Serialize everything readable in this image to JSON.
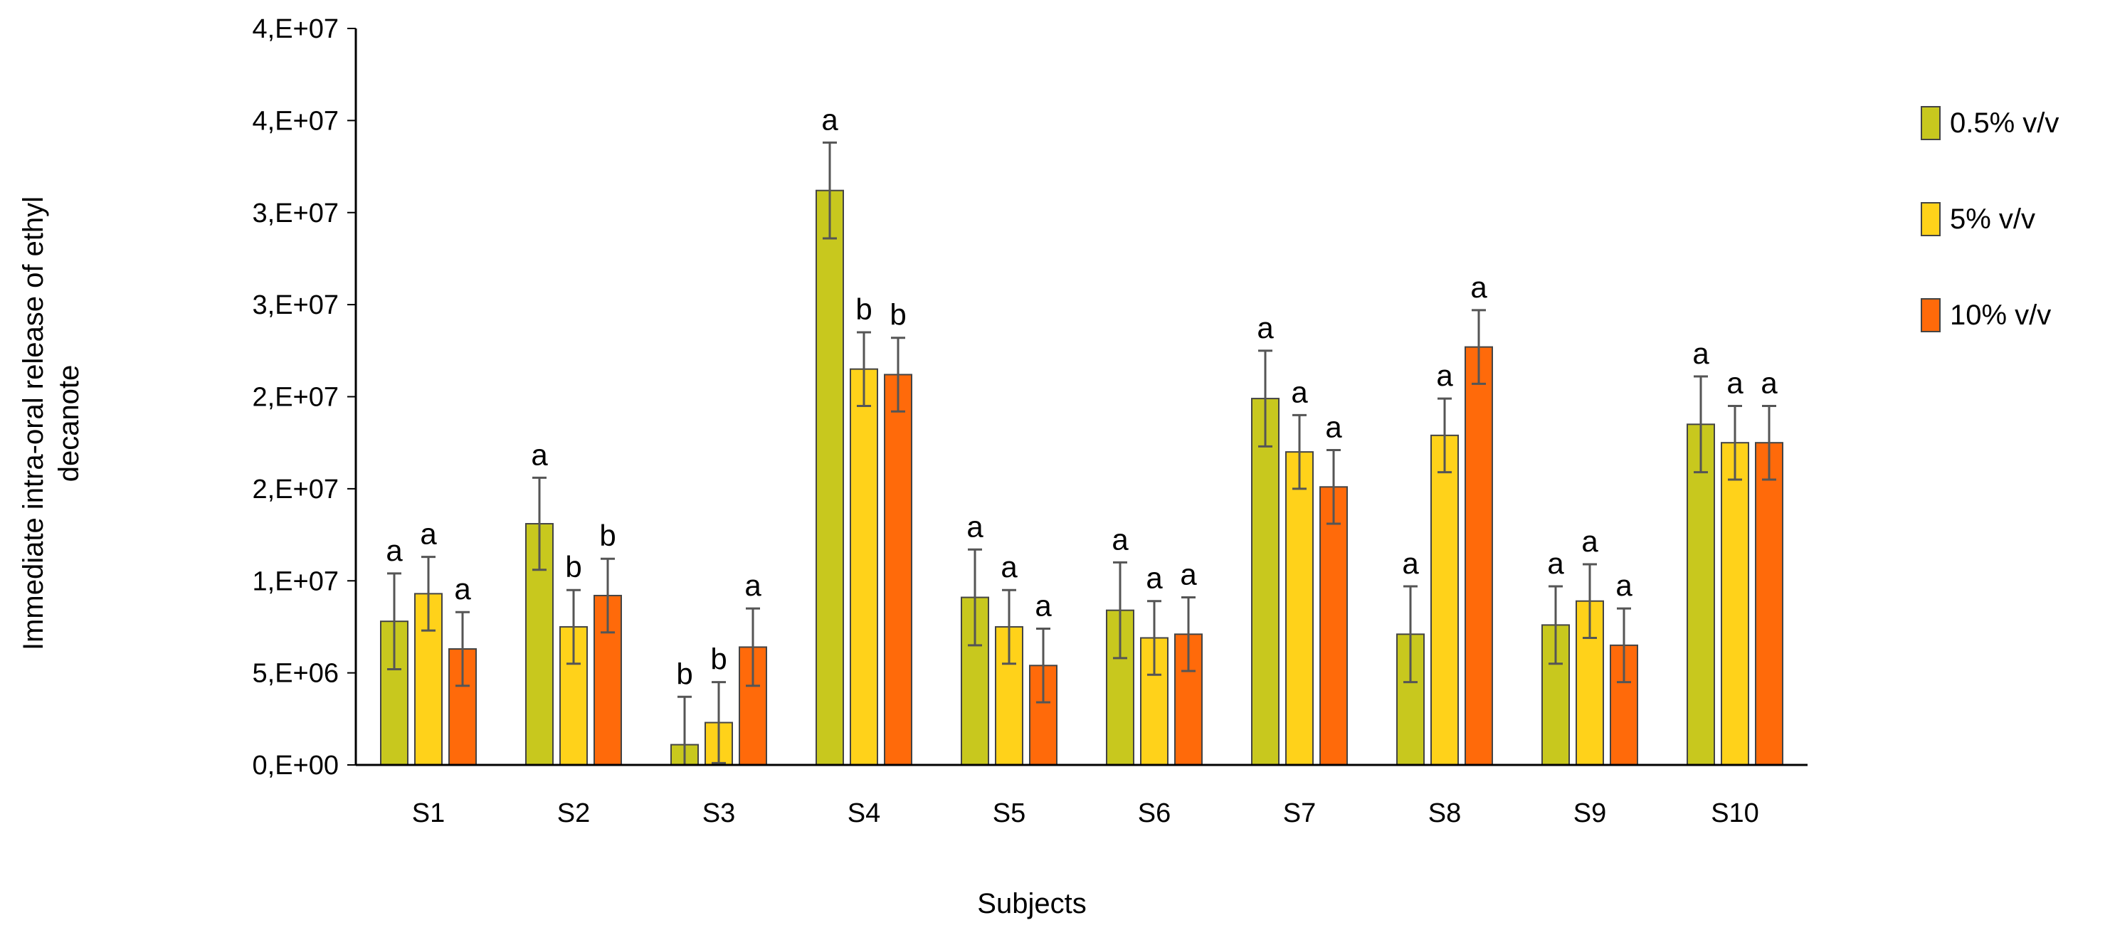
{
  "chart_data": {
    "type": "bar",
    "title": "",
    "xlabel": "Subjects",
    "ylabel_lines": [
      "Immediate intra-oral release of ethyl",
      "decanote"
    ],
    "categories": [
      "S1",
      "S2",
      "S3",
      "S4",
      "S5",
      "S6",
      "S7",
      "S8",
      "S9",
      "S10"
    ],
    "ylim": [
      0,
      40000000
    ],
    "yticks": [
      {
        "value": 0,
        "label": "0,E+00"
      },
      {
        "value": 5000000,
        "label": "5,E+06"
      },
      {
        "value": 10000000,
        "label": "1,E+07"
      },
      {
        "value": 15000000,
        "label": "2,E+07"
      },
      {
        "value": 20000000,
        "label": "2,E+07"
      },
      {
        "value": 25000000,
        "label": "3,E+07"
      },
      {
        "value": 30000000,
        "label": "3,E+07"
      },
      {
        "value": 35000000,
        "label": "4,E+07"
      },
      {
        "value": 40000000,
        "label": "4,E+07"
      }
    ],
    "grid": false,
    "legend_position": "right",
    "series": [
      {
        "name": "0.5% v/v",
        "color": "#c8c81e",
        "values": [
          7800000,
          13100000,
          1100000,
          31200000,
          9100000,
          8400000,
          19900000,
          7100000,
          7600000,
          18500000
        ],
        "errors": [
          2600000,
          2500000,
          2600000,
          2600000,
          2600000,
          2600000,
          2600000,
          2600000,
          2100000,
          2600000
        ],
        "labels": [
          "a",
          "a",
          "b",
          "a",
          "a",
          "a",
          "a",
          "a",
          "a",
          "a"
        ]
      },
      {
        "name": "5% v/v",
        "color": "#ffd21a",
        "values": [
          9300000,
          7500000,
          2300000,
          21500000,
          7500000,
          6900000,
          17000000,
          17900000,
          8900000,
          17500000
        ],
        "errors": [
          2000000,
          2000000,
          2200000,
          2000000,
          2000000,
          2000000,
          2000000,
          2000000,
          2000000,
          2000000
        ],
        "labels": [
          "a",
          "b",
          "b",
          "b",
          "a",
          "a",
          "a",
          "a",
          "a",
          "a"
        ]
      },
      {
        "name": "10% v/v",
        "color": "#ff6a0a",
        "values": [
          6300000,
          9200000,
          6400000,
          21200000,
          5400000,
          7100000,
          15100000,
          22700000,
          6500000,
          17500000
        ],
        "errors": [
          2000000,
          2000000,
          2100000,
          2000000,
          2000000,
          2000000,
          2000000,
          2000000,
          2000000,
          2000000
        ],
        "labels": [
          "a",
          "b",
          "a",
          "b",
          "a",
          "a",
          "a",
          "a",
          "a",
          "a"
        ]
      }
    ]
  },
  "colors": {
    "series_border": "#444444",
    "axis": "#000000",
    "error_bar": "#555555"
  }
}
